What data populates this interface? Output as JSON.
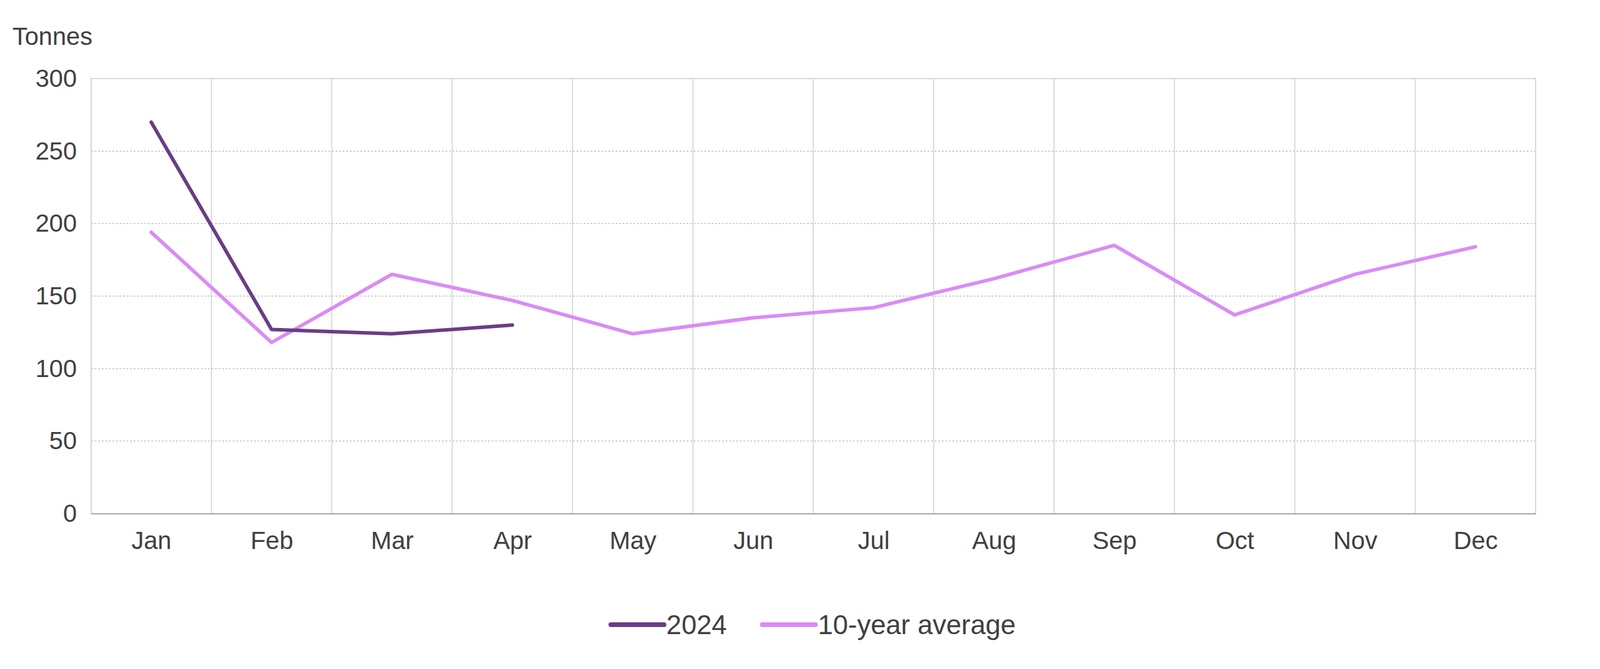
{
  "chart_data": {
    "type": "line",
    "y_label": "Tonnes",
    "categories": [
      "Jan",
      "Feb",
      "Mar",
      "Apr",
      "May",
      "Jun",
      "Jul",
      "Aug",
      "Sep",
      "Oct",
      "Nov",
      "Dec"
    ],
    "series": [
      {
        "name": "2024",
        "color": "#6a3d86",
        "values": [
          270,
          127,
          124,
          130,
          null,
          null,
          null,
          null,
          null,
          null,
          null,
          null
        ]
      },
      {
        "name": "10-year average",
        "color": "#d98cf5",
        "values": [
          194,
          118,
          165,
          147,
          124,
          135,
          142,
          162,
          185,
          137,
          165,
          184
        ]
      }
    ],
    "ylim": [
      0,
      300
    ],
    "yticks": [
      0,
      50,
      100,
      150,
      200,
      250,
      300
    ],
    "grid": true,
    "legend": "bottom"
  }
}
